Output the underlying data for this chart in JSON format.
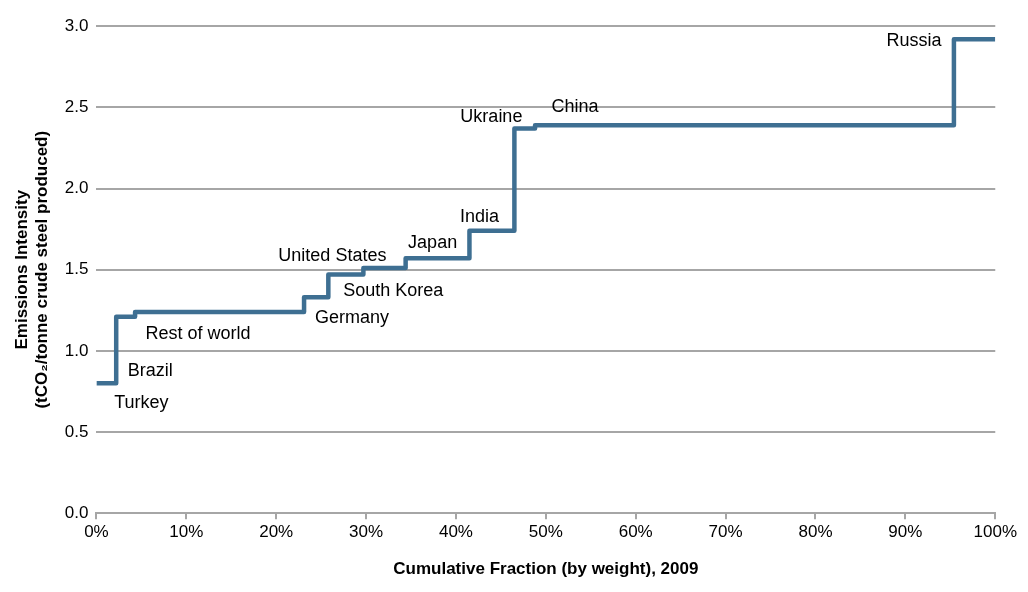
{
  "chart_data": {
    "type": "step",
    "xlabel": "Cumulative Fraction (by weight), 2009",
    "ylabel": [
      "Emissions Intensity",
      "(tCO₂/tonne crude steel produced)"
    ],
    "x": [
      0,
      2.2,
      4.3,
      23.1,
      25.8,
      29.7,
      34.4,
      41.5,
      46.5,
      48.8,
      95.4,
      100
    ],
    "series": [
      {
        "color": "#3e6f92",
        "values": [
          0.8,
          1.21,
          1.24,
          1.33,
          1.47,
          1.51,
          1.57,
          1.74,
          2.37,
          2.39,
          2.92,
          2.92
        ],
        "value_labels": [
          "Turkey",
          "Brazil",
          "Rest of world",
          "Germany",
          "South Korea",
          "United States",
          "Japan",
          "India",
          "Ukraine",
          "China",
          "Russia",
          null
        ]
      }
    ],
    "xlim": [
      0,
      100
    ],
    "xticks": [
      {
        "value": 0,
        "label": "0%"
      },
      {
        "value": 10,
        "label": "10%"
      },
      {
        "value": 20,
        "label": "20%"
      },
      {
        "value": 30,
        "label": "30%"
      },
      {
        "value": 40,
        "label": "40%"
      },
      {
        "value": 50,
        "label": "50%"
      },
      {
        "value": 60,
        "label": "60%"
      },
      {
        "value": 70,
        "label": "70%"
      },
      {
        "value": 80,
        "label": "80%"
      },
      {
        "value": 90,
        "label": "90%"
      },
      {
        "value": 100,
        "label": "100%"
      }
    ],
    "ylim": [
      0,
      3
    ],
    "yticks": [
      {
        "value": 0,
        "label": "0.0"
      },
      {
        "value": 0.5,
        "label": "0.5"
      },
      {
        "value": 1,
        "label": "1.0"
      },
      {
        "value": 1.5,
        "label": "1.5"
      },
      {
        "value": 2,
        "label": "2.0"
      },
      {
        "value": 2.5,
        "label": "2.5"
      },
      {
        "value": 3,
        "label": "3.0"
      }
    ],
    "grid": "y",
    "legend": false
  }
}
